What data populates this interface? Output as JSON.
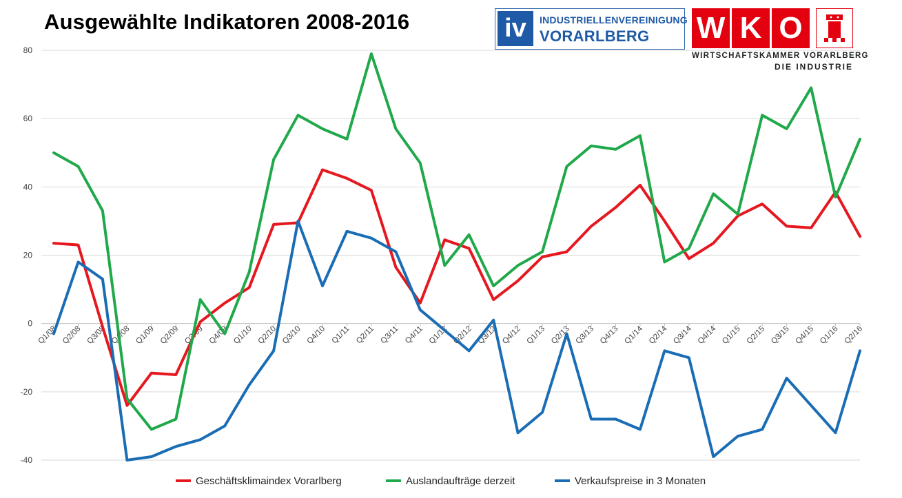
{
  "title": "Ausgewählte Indikatoren 2008-2016",
  "logos": {
    "iv": {
      "mark": "iv",
      "line1": "INDUSTRIELLENVEREINIGUNG",
      "line2": "VORARLBERG",
      "color": "#1f5aa6"
    },
    "wko": {
      "letters": [
        "W",
        "K",
        "O"
      ],
      "sub1": "WIRTSCHAFTSKAMMER VORARLBERG",
      "sub2": "DIE INDUSTRIE",
      "color": "#e3000f"
    }
  },
  "chart_data": {
    "type": "line",
    "title": "Ausgewählte Indikatoren 2008-2016",
    "ylim": [
      -40,
      80
    ],
    "yticks": [
      -40,
      -20,
      0,
      20,
      40,
      60,
      80
    ],
    "grid": true,
    "legend_position": "bottom",
    "categories": [
      "Q1/08",
      "Q2/08",
      "Q3/08",
      "Q4/08",
      "Q1/09",
      "Q2/09",
      "Q3/09",
      "Q4/09",
      "Q1/10",
      "Q2/10",
      "Q3/10",
      "Q4/10",
      "Q1/11",
      "Q2/11",
      "Q3/11",
      "Q4/11",
      "Q1/12",
      "Q2/12",
      "Q3/12",
      "Q4/12",
      "Q1/13",
      "Q2/13",
      "Q3/13",
      "Q4/13",
      "Q1/14",
      "Q2/14",
      "Q3/14",
      "Q4/14",
      "Q1/15",
      "Q2/15",
      "Q3/15",
      "Q4/15",
      "Q1/16",
      "Q2/16"
    ],
    "series": [
      {
        "name": "Geschäftsklimaindex Vorarlberg",
        "color": "#e5171f",
        "values": [
          23.5,
          23,
          -1,
          -24,
          -14.5,
          -15,
          0.5,
          6,
          10.5,
          29,
          29.5,
          45,
          42.5,
          39,
          16.5,
          6,
          24.5,
          22,
          7,
          12.5,
          19.5,
          21,
          28.5,
          34,
          40.5,
          30,
          19,
          23.5,
          31.5,
          35,
          28.5,
          28,
          38.5,
          25.5
        ]
      },
      {
        "name": "Auslandaufträge derzeit",
        "color": "#20a84a",
        "values": [
          50,
          46,
          33,
          -22,
          -31,
          -28,
          7,
          -3,
          15,
          48,
          61,
          57,
          54,
          79,
          57,
          47,
          17,
          26,
          11,
          17,
          21,
          46,
          52,
          51,
          55,
          18,
          22,
          38,
          32,
          61,
          57,
          69,
          37,
          54
        ]
      },
      {
        "name": "Verkaufspreise in 3 Monaten",
        "color": "#1a6db5",
        "values": [
          -3,
          18,
          13,
          -40,
          -39,
          -36,
          -34,
          -30,
          -18,
          -8,
          30,
          11,
          27,
          25,
          21,
          4,
          -2,
          -8,
          1,
          -32,
          -26,
          -3,
          -28,
          -28,
          -31,
          -8,
          -10,
          -39,
          -33,
          -31,
          -16,
          -24,
          -32,
          -8
        ]
      }
    ]
  }
}
